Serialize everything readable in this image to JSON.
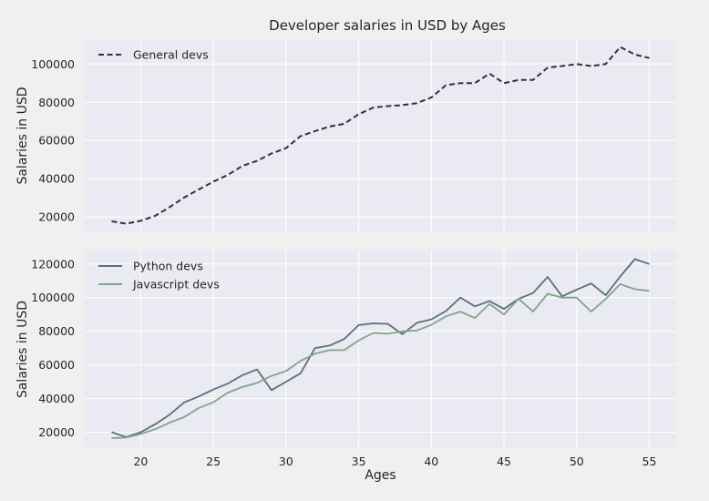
{
  "figure": {
    "title": "Developer salaries in USD by Ages",
    "background": "#f0f0f0",
    "axes_background": "#eaeaf2",
    "grid_color": "#ffffff"
  },
  "chart_data": [
    {
      "type": "line",
      "title": "Developer salaries in USD by Ages",
      "xlabel": "",
      "ylabel": "Salaries in USD",
      "grid": true,
      "legend_position": "top-left",
      "xlim": [
        16.15,
        56.85
      ],
      "ylim": [
        12000,
        113000
      ],
      "yticks": [
        20000,
        40000,
        60000,
        80000,
        100000
      ],
      "ytick_labels": [
        "20000",
        "40000",
        "60000",
        "80000",
        "100000"
      ],
      "x": [
        18,
        19,
        20,
        21,
        22,
        23,
        24,
        25,
        26,
        27,
        28,
        29,
        30,
        31,
        32,
        33,
        34,
        35,
        36,
        37,
        38,
        39,
        40,
        41,
        42,
        43,
        44,
        45,
        46,
        47,
        48,
        49,
        50,
        51,
        52,
        53,
        54,
        55
      ],
      "series": [
        {
          "name": "General devs",
          "color": "#2e3240",
          "style": "dashed",
          "values": [
            17784,
            16500,
            18012,
            20628,
            25206,
            30252,
            34368,
            38496,
            42000,
            46752,
            49320,
            53200,
            56000,
            62316,
            64928,
            67317,
            68748,
            73752,
            77232,
            78000,
            78508,
            79536,
            82488,
            88935,
            90000,
            90056,
            95000,
            90000,
            91633,
            91660,
            98150,
            98964,
            100000,
            98988,
            100000,
            108923,
            105000,
            103117
          ]
        }
      ]
    },
    {
      "type": "line",
      "title": "",
      "xlabel": "Ages",
      "ylabel": "Salaries in USD",
      "grid": true,
      "legend_position": "top-left",
      "xlim": [
        16.15,
        56.85
      ],
      "ylim": [
        10500,
        128000
      ],
      "xticks": [
        20,
        25,
        30,
        35,
        40,
        45,
        50,
        55
      ],
      "xtick_labels": [
        "20",
        "25",
        "30",
        "35",
        "40",
        "45",
        "50",
        "55"
      ],
      "yticks": [
        20000,
        40000,
        60000,
        80000,
        100000,
        120000
      ],
      "ytick_labels": [
        "20000",
        "40000",
        "60000",
        "80000",
        "100000",
        "120000"
      ],
      "x": [
        18,
        19,
        20,
        21,
        22,
        23,
        24,
        25,
        26,
        27,
        28,
        29,
        30,
        31,
        32,
        33,
        34,
        35,
        36,
        37,
        38,
        39,
        40,
        41,
        42,
        43,
        44,
        45,
        46,
        47,
        48,
        49,
        50,
        51,
        52,
        53,
        54,
        55
      ],
      "series": [
        {
          "name": "Python devs",
          "color": "#5d6d7e",
          "style": "solid",
          "values": [
            20046,
            17100,
            20000,
            24744,
            30500,
            37732,
            41247,
            45372,
            48876,
            53850,
            57287,
            45000,
            50000,
            55000,
            70000,
            71496,
            75370,
            83640,
            84666,
            84392,
            78254,
            85000,
            87038,
            91991,
            100000,
            94796,
            97962,
            93302,
            99240,
            102736,
            112285,
            100771,
            104708,
            108423,
            101407,
            112542,
            122870,
            120000
          ]
        },
        {
          "name": "Javascript devs",
          "color": "#7fa58a",
          "style": "solid",
          "values": [
            16446,
            16791,
            18942,
            21780,
            25704,
            29000,
            34372,
            37810,
            43515,
            46823,
            49293,
            53437,
            56373,
            62375,
            66674,
            68745,
            68746,
            74583,
            79000,
            78508,
            79996,
            80403,
            83820,
            88833,
            91660,
            87892,
            96243,
            90000,
            99313,
            91660,
            102264,
            100000,
            100000,
            91660,
            99240,
            108000,
            105000,
            104000
          ]
        }
      ]
    }
  ]
}
